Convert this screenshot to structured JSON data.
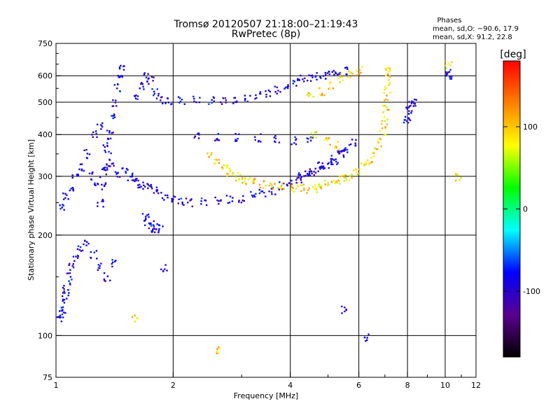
{
  "chart_data": {
    "type": "scatter",
    "title": "Tromsø 20120507 21:18:00–21:19:43",
    "subtitle": "RwPretec (8p)",
    "xlabel": "Frequency [MHz]",
    "ylabel": "Stationary phase Virtual Height [km]",
    "x_scale": "log",
    "y_scale": "log",
    "xlim": [
      1,
      12
    ],
    "ylim": [
      75,
      750
    ],
    "x_ticks": [
      1,
      2,
      4,
      6,
      8,
      10,
      12
    ],
    "x_tick_labels": [
      "1",
      "2",
      "4",
      "6",
      "8",
      "10",
      "12"
    ],
    "y_ticks": [
      75,
      100,
      200,
      300,
      400,
      500,
      600,
      750
    ],
    "y_tick_labels": [
      "75",
      "100",
      "200",
      "300",
      "400",
      "500",
      "600",
      "750"
    ],
    "x_gridlines": [
      2,
      4,
      6,
      8,
      10
    ],
    "y_gridlines": [
      100,
      200,
      300,
      400,
      500,
      600
    ],
    "grid": true,
    "colorbar": {
      "label": "[deg]",
      "min": -180,
      "max": 180,
      "ticks": [
        100,
        0,
        -100
      ],
      "tick_labels": [
        "100",
        "0",
        "-100"
      ],
      "colormap": [
        "#000000",
        "#5a0090",
        "#0000ff",
        "#00ffff",
        "#00ff00",
        "#ffff00",
        "#ff8000",
        "#ff0000"
      ]
    },
    "stats_box": {
      "title": "Phases",
      "line1": "mean, sd,O: −90.6, 17.9",
      "line2": "mean, sd,X:  91.2, 22.8"
    },
    "series": [
      {
        "mode": "O",
        "phase_mean": -90.6,
        "phase_sd": 17.9,
        "points": [
          [
            1.02,
            112
          ],
          [
            1.03,
            116
          ],
          [
            1.04,
            120
          ],
          [
            1.05,
            128
          ],
          [
            1.06,
            135
          ],
          [
            1.07,
            140
          ],
          [
            1.08,
            150
          ],
          [
            1.1,
            160
          ],
          [
            1.12,
            170
          ],
          [
            1.15,
            180
          ],
          [
            1.2,
            190
          ],
          [
            1.25,
            175
          ],
          [
            1.3,
            160
          ],
          [
            1.35,
            150
          ],
          [
            1.4,
            165
          ],
          [
            1.03,
            240
          ],
          [
            1.06,
            260
          ],
          [
            1.09,
            280
          ],
          [
            1.12,
            300
          ],
          [
            1.16,
            320
          ],
          [
            1.22,
            300
          ],
          [
            1.28,
            290
          ],
          [
            1.33,
            310
          ],
          [
            1.4,
            330
          ],
          [
            1.45,
            300
          ],
          [
            1.5,
            310
          ],
          [
            1.55,
            300
          ],
          [
            1.6,
            290
          ],
          [
            1.65,
            285
          ],
          [
            1.7,
            280
          ],
          [
            1.75,
            275
          ],
          [
            1.8,
            270
          ],
          [
            1.9,
            262
          ],
          [
            2.0,
            255
          ],
          [
            2.1,
            252
          ],
          [
            2.2,
            250
          ],
          [
            2.4,
            251
          ],
          [
            2.6,
            254
          ],
          [
            2.8,
            256
          ],
          [
            3.0,
            258
          ],
          [
            3.2,
            262
          ],
          [
            3.4,
            266
          ],
          [
            3.6,
            272
          ],
          [
            3.8,
            280
          ],
          [
            4.0,
            288
          ],
          [
            4.2,
            295
          ],
          [
            4.4,
            302
          ],
          [
            4.6,
            310
          ],
          [
            4.8,
            318
          ],
          [
            5.0,
            326
          ],
          [
            5.2,
            335
          ],
          [
            5.4,
            348
          ],
          [
            5.6,
            362
          ],
          [
            5.8,
            380
          ],
          [
            1.3,
            250
          ],
          [
            1.32,
            280
          ],
          [
            1.34,
            320
          ],
          [
            1.36,
            360
          ],
          [
            1.38,
            400
          ],
          [
            1.4,
            450
          ],
          [
            1.42,
            500
          ],
          [
            1.44,
            550
          ],
          [
            1.46,
            600
          ],
          [
            1.48,
            640
          ],
          [
            1.2,
            350
          ],
          [
            1.25,
            400
          ],
          [
            1.3,
            420
          ],
          [
            1.35,
            380
          ],
          [
            1.6,
            520
          ],
          [
            1.65,
            560
          ],
          [
            1.7,
            600
          ],
          [
            1.75,
            580
          ],
          [
            1.8,
            540
          ],
          [
            1.85,
            510
          ],
          [
            1.95,
            505
          ],
          [
            2.1,
            505
          ],
          [
            2.3,
            505
          ],
          [
            2.5,
            505
          ],
          [
            2.7,
            508
          ],
          [
            2.9,
            510
          ],
          [
            3.1,
            515
          ],
          [
            3.3,
            522
          ],
          [
            3.5,
            532
          ],
          [
            3.7,
            542
          ],
          [
            3.9,
            565
          ],
          [
            4.1,
            575
          ],
          [
            4.3,
            585
          ],
          [
            4.5,
            590
          ],
          [
            4.7,
            595
          ],
          [
            4.9,
            600
          ],
          [
            5.1,
            605
          ],
          [
            5.3,
            612
          ],
          [
            5.5,
            620
          ],
          [
            1.7,
            230
          ],
          [
            1.72,
            220
          ],
          [
            1.74,
            210
          ],
          [
            1.76,
            215
          ],
          [
            1.8,
            205
          ],
          [
            1.85,
            210
          ],
          [
            4.2,
            300
          ],
          [
            4.5,
            310
          ],
          [
            4.8,
            322
          ],
          [
            5.1,
            336
          ],
          [
            5.4,
            352
          ],
          [
            8.0,
            450
          ],
          [
            8.1,
            470
          ],
          [
            8.2,
            490
          ],
          [
            8.3,
            500
          ],
          [
            7.9,
            440
          ],
          [
            2.3,
            400
          ],
          [
            2.6,
            395
          ],
          [
            2.9,
            392
          ],
          [
            3.3,
            390
          ],
          [
            3.7,
            388
          ],
          [
            4.1,
            385
          ],
          [
            4.5,
            382
          ],
          [
            10.2,
            610
          ],
          [
            10.2,
            600
          ],
          [
            5.5,
            120
          ],
          [
            6.3,
            98
          ],
          [
            1.9,
            160
          ]
        ]
      },
      {
        "mode": "X",
        "phase_mean": 91.2,
        "phase_sd": 22.8,
        "points": [
          [
            2.5,
            350
          ],
          [
            2.6,
            335
          ],
          [
            2.7,
            320
          ],
          [
            2.8,
            310
          ],
          [
            2.9,
            300
          ],
          [
            3.0,
            294
          ],
          [
            3.1,
            290
          ],
          [
            3.2,
            287
          ],
          [
            3.4,
            284
          ],
          [
            3.6,
            280
          ],
          [
            3.8,
            278
          ],
          [
            4.0,
            276
          ],
          [
            4.2,
            275
          ],
          [
            4.4,
            275
          ],
          [
            4.6,
            277
          ],
          [
            4.8,
            280
          ],
          [
            5.0,
            284
          ],
          [
            5.2,
            288
          ],
          [
            5.4,
            293
          ],
          [
            5.6,
            298
          ],
          [
            5.8,
            305
          ],
          [
            6.0,
            312
          ],
          [
            6.2,
            322
          ],
          [
            6.4,
            335
          ],
          [
            6.6,
            355
          ],
          [
            6.8,
            380
          ],
          [
            6.9,
            410
          ],
          [
            7.0,
            440
          ],
          [
            7.05,
            480
          ],
          [
            7.1,
            520
          ],
          [
            7.1,
            560
          ],
          [
            7.15,
            600
          ],
          [
            7.1,
            630
          ],
          [
            4.5,
            520
          ],
          [
            4.8,
            540
          ],
          [
            5.1,
            560
          ],
          [
            5.4,
            590
          ],
          [
            5.7,
            610
          ],
          [
            6.0,
            620
          ],
          [
            4.6,
            400
          ],
          [
            5.0,
            380
          ],
          [
            5.3,
            370
          ],
          [
            10.2,
            650
          ],
          [
            10.8,
            300
          ],
          [
            2.6,
            90
          ],
          [
            1.6,
            113
          ]
        ]
      }
    ]
  }
}
